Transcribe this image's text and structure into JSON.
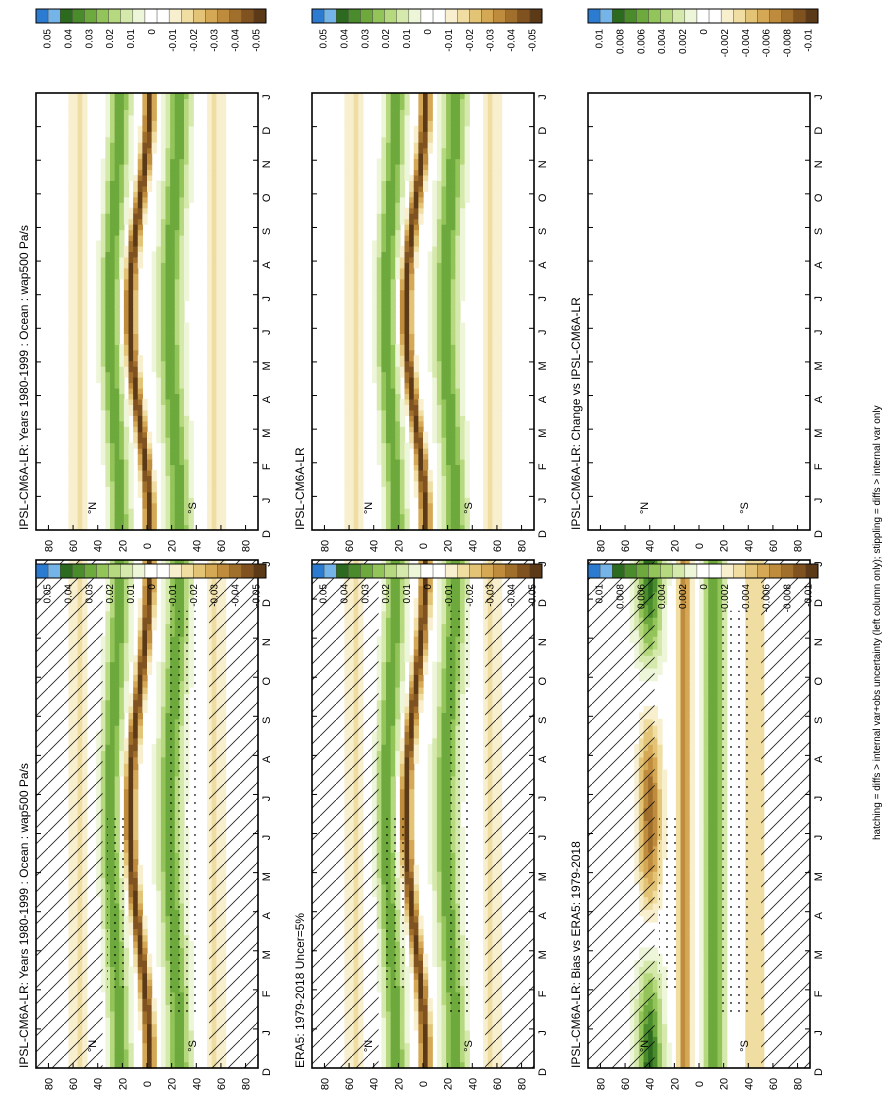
{
  "figure": {
    "footnote": "hatching = diffs > internal var+obs uncertainty (left column only); stippling = diffs > internal var only"
  },
  "colorbars": {
    "main": {
      "labels": [
        "0.05",
        "0.04",
        "0.03",
        "0.02",
        "0.01",
        "0",
        "-0.01",
        "-0.02",
        "-0.03",
        "-0.04",
        "-0.05"
      ],
      "colors": [
        "#2b7bd1",
        "#74b4e8",
        "#2c6b1f",
        "#4a8c2c",
        "#6da93c",
        "#93c45a",
        "#b6d87e",
        "#d6e9ac",
        "#eef6da",
        "#ffffff",
        "#ffffff",
        "#f8efcf",
        "#efdda2",
        "#e3c477",
        "#d4a855",
        "#bf8c3d",
        "#a06f2c",
        "#7f5220",
        "#5d3a17"
      ]
    },
    "bias": {
      "labels": [
        "0.01",
        "0.008",
        "0.006",
        "0.004",
        "0.002",
        "0",
        "-0.002",
        "-0.004",
        "-0.006",
        "-0.008",
        "-0.01"
      ],
      "colors": [
        "#2b7bd1",
        "#74b4e8",
        "#2c6b1f",
        "#4a8c2c",
        "#6da93c",
        "#93c45a",
        "#b6d87e",
        "#d6e9ac",
        "#eef6da",
        "#ffffff",
        "#ffffff",
        "#f8efcf",
        "#efdda2",
        "#e3c477",
        "#d4a855",
        "#bf8c3d",
        "#a06f2c",
        "#7f5220",
        "#5d3a17"
      ]
    }
  },
  "axes": {
    "month_ticks": [
      "D",
      "J",
      "F",
      "M",
      "A",
      "M",
      "J",
      "J",
      "A",
      "S",
      "O",
      "N",
      "D",
      "J"
    ],
    "lat_ticks": [
      "80",
      "60",
      "40",
      "20",
      "0",
      "20",
      "40",
      "60",
      "80"
    ],
    "lat_hemi": [
      "°N",
      "°S"
    ]
  },
  "chart_data": [
    {
      "type": "heatmap",
      "title": "IPSL-CM6A-LR: Years 1980-1999 : Ocean : wap500 Pa/s",
      "x": "month (Dec-Jan cycle)",
      "y": "latitude",
      "ylim": [
        -90,
        90
      ],
      "value_range": [
        -0.05,
        0.05
      ],
      "hatching": true,
      "stippling": true,
      "features": [
        "ITCZ descent band near 0-10°N peaking ~-0.05 in Jul-Oct",
        "subtropical ascent bands ~+0.03 near 20-35°"
      ]
    },
    {
      "type": "heatmap",
      "title": "IPSL-CM6A-LR: Years 1980-1999 : Ocean : wap500 Pa/s",
      "x": "month (Dec-Jan cycle)",
      "y": "latitude",
      "ylim": [
        -90,
        90
      ],
      "value_range": [
        -0.05,
        0.05
      ],
      "hatching": false,
      "stippling": false
    },
    {
      "type": "heatmap",
      "title": "ERA5: 1979-2018 Uncer=5%",
      "x": "month (Dec-Jan cycle)",
      "y": "latitude",
      "ylim": [
        -90,
        90
      ],
      "value_range": [
        -0.05,
        0.05
      ],
      "hatching": true,
      "stippling": true
    },
    {
      "type": "heatmap",
      "title": "IPSL-CM6A-LR",
      "x": "month (Dec-Jan cycle)",
      "y": "latitude",
      "ylim": [
        -90,
        90
      ],
      "value_range": [
        -0.05,
        0.05
      ],
      "hatching": false,
      "stippling": false
    },
    {
      "type": "heatmap",
      "title": "IPSL-CM6A-LR: Bias vs ERA5: 1979-2018",
      "x": "month (Dec-Jan cycle)",
      "y": "latitude",
      "ylim": [
        -90,
        90
      ],
      "value_range": [
        -0.01,
        0.01
      ],
      "hatching": true,
      "stippling": true
    },
    {
      "type": "heatmap",
      "title": "IPSL-CM6A-LR: Change vs IPSL-CM6A-LR",
      "x": "month (Dec-Jan cycle)",
      "y": "latitude",
      "ylim": [
        -90,
        90
      ],
      "value_range": [
        -0.01,
        0.01
      ],
      "hatching": false,
      "stippling": false,
      "empty": true
    }
  ]
}
